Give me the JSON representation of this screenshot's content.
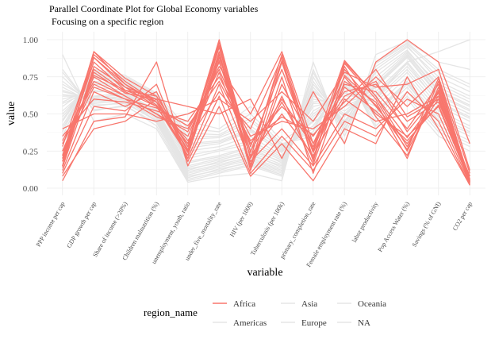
{
  "chart_data": {
    "type": "line",
    "title": "Parallel Coordinate Plot for Global Economy variables",
    "subtitle": "Focusing on a specific region",
    "xlabel": "variable",
    "ylabel": "value",
    "ylim": [
      0,
      1
    ],
    "y_ticks": [
      "0.00",
      "0.25",
      "0.50",
      "0.75",
      "1.00"
    ],
    "categories": [
      "PPP income per cap",
      "GDP growth per cap",
      "Share of income (>20%)",
      "Children malnutrition (%)",
      "unemployment, youth, ratio",
      "under_five_mortality_rate",
      "HIV (per 1000)",
      "Tuberculosis (per 100k)",
      "primary_completion_rate",
      "Female employment rate (%)",
      "labor productivity",
      "Pop Access Water (%)",
      "Savings (% of GNI)",
      "CO2 per cap"
    ],
    "grid": true,
    "legend": {
      "title": "region_name",
      "position": "bottom",
      "entries": [
        {
          "label": "Africa",
          "color": "#F8766D"
        },
        {
          "label": "Americas",
          "color": "#E5E5E5"
        },
        {
          "label": "Asia",
          "color": "#E5E5E5"
        },
        {
          "label": "Europe",
          "color": "#E5E5E5"
        },
        {
          "label": "Oceania",
          "color": "#E5E5E5"
        },
        {
          "label": "NA",
          "color": "#E5E5E5"
        }
      ]
    },
    "highlight_color": "#F8766D",
    "other_color": "#E5E5E5",
    "series": [
      {
        "group": "Africa",
        "values": [
          0.15,
          0.92,
          0.7,
          0.58,
          0.3,
          1.0,
          0.2,
          0.9,
          0.25,
          0.8,
          0.55,
          0.3,
          0.6,
          0.03
        ]
      },
      {
        "group": "Africa",
        "values": [
          0.2,
          0.88,
          0.68,
          0.6,
          0.25,
          0.95,
          0.15,
          0.85,
          0.2,
          0.84,
          0.6,
          0.25,
          0.65,
          0.05
        ]
      },
      {
        "group": "Africa",
        "values": [
          0.18,
          0.8,
          0.65,
          0.55,
          0.22,
          0.9,
          0.12,
          0.7,
          0.3,
          0.75,
          0.5,
          0.35,
          0.55,
          0.04
        ]
      },
      {
        "group": "Africa",
        "values": [
          0.25,
          0.75,
          0.62,
          0.5,
          0.35,
          0.85,
          0.25,
          0.6,
          0.28,
          0.7,
          0.65,
          0.4,
          0.7,
          0.06
        ]
      },
      {
        "group": "Africa",
        "values": [
          0.3,
          0.7,
          0.6,
          0.48,
          0.4,
          0.8,
          0.3,
          0.55,
          0.35,
          0.65,
          0.7,
          0.45,
          0.58,
          0.08
        ]
      },
      {
        "group": "Africa",
        "values": [
          0.22,
          0.85,
          0.66,
          0.62,
          0.28,
          0.78,
          0.22,
          0.5,
          0.22,
          0.6,
          0.45,
          0.5,
          0.62,
          0.05
        ]
      },
      {
        "group": "Africa",
        "values": [
          0.35,
          0.6,
          0.58,
          0.52,
          0.45,
          0.75,
          0.35,
          0.45,
          0.4,
          0.55,
          0.75,
          0.55,
          0.75,
          0.1
        ]
      },
      {
        "group": "Africa",
        "values": [
          0.12,
          0.65,
          0.55,
          0.65,
          0.2,
          0.7,
          0.18,
          0.4,
          0.15,
          0.5,
          0.4,
          0.6,
          0.5,
          0.03
        ]
      },
      {
        "group": "Africa",
        "values": [
          0.28,
          0.9,
          0.72,
          0.58,
          0.32,
          0.65,
          0.4,
          0.88,
          0.18,
          0.85,
          0.62,
          0.28,
          0.66,
          0.04
        ]
      },
      {
        "group": "Africa",
        "values": [
          0.1,
          0.55,
          0.52,
          0.7,
          0.18,
          0.62,
          0.1,
          0.35,
          0.12,
          0.45,
          0.35,
          0.65,
          0.45,
          0.02
        ]
      },
      {
        "group": "Africa",
        "values": [
          0.4,
          0.5,
          0.5,
          0.45,
          0.5,
          0.6,
          0.45,
          0.65,
          0.45,
          0.78,
          0.68,
          0.7,
          0.8,
          0.12
        ]
      },
      {
        "group": "Africa",
        "values": [
          0.15,
          0.82,
          0.68,
          0.55,
          0.24,
          0.92,
          0.14,
          0.75,
          0.1,
          0.72,
          0.58,
          0.2,
          0.72,
          0.03
        ]
      },
      {
        "group": "Africa",
        "values": [
          0.2,
          0.78,
          0.64,
          0.6,
          0.26,
          0.88,
          0.28,
          0.8,
          0.24,
          0.68,
          0.52,
          0.32,
          0.56,
          0.05
        ]
      },
      {
        "group": "Africa",
        "values": [
          0.05,
          0.45,
          0.48,
          0.85,
          0.15,
          0.55,
          0.08,
          0.3,
          0.05,
          0.4,
          0.3,
          0.75,
          0.4,
          0.02
        ]
      },
      {
        "group": "Africa",
        "values": [
          0.32,
          0.72,
          0.62,
          0.5,
          0.38,
          0.82,
          0.5,
          0.92,
          0.3,
          0.62,
          0.72,
          0.38,
          0.64,
          0.06
        ]
      },
      {
        "group": "Africa",
        "values": [
          0.18,
          0.88,
          0.7,
          0.56,
          0.3,
          0.96,
          0.2,
          0.58,
          0.2,
          0.82,
          0.48,
          0.22,
          0.68,
          0.04
        ]
      },
      {
        "group": "Africa",
        "values": [
          0.25,
          0.68,
          0.6,
          0.54,
          0.42,
          0.72,
          0.32,
          0.48,
          0.36,
          0.58,
          0.8,
          0.48,
          0.6,
          0.08
        ]
      },
      {
        "group": "Africa",
        "values": [
          0.14,
          0.76,
          0.66,
          0.58,
          0.22,
          0.86,
          0.16,
          0.62,
          0.16,
          0.76,
          0.56,
          0.26,
          0.74,
          0.04
        ]
      },
      {
        "group": "Africa",
        "values": [
          0.08,
          0.4,
          0.45,
          0.6,
          0.55,
          0.5,
          0.6,
          0.2,
          0.65,
          0.3,
          0.85,
          1.0,
          0.85,
          0.3
        ]
      },
      {
        "group": "Africa",
        "values": [
          0.22,
          0.92,
          0.74,
          0.62,
          0.28,
          0.98,
          0.24,
          0.86,
          0.26,
          0.86,
          0.62,
          0.34,
          0.62,
          0.05
        ]
      },
      {
        "group": "Other",
        "values": [
          0.55,
          0.7,
          0.68,
          0.55,
          0.2,
          0.25,
          0.3,
          0.2,
          0.55,
          0.6,
          0.6,
          0.8,
          0.55,
          0.45
        ]
      },
      {
        "group": "Other",
        "values": [
          0.6,
          0.65,
          0.65,
          0.52,
          0.15,
          0.2,
          0.25,
          0.18,
          0.6,
          0.55,
          0.65,
          0.85,
          0.6,
          0.5
        ]
      },
      {
        "group": "Other",
        "values": [
          0.65,
          0.6,
          0.62,
          0.5,
          0.12,
          0.18,
          0.22,
          0.15,
          0.65,
          0.5,
          0.7,
          0.9,
          0.65,
          0.55
        ]
      },
      {
        "group": "Other",
        "values": [
          0.5,
          0.72,
          0.7,
          0.58,
          0.25,
          0.28,
          0.35,
          0.22,
          0.5,
          0.65,
          0.55,
          0.75,
          0.5,
          0.4
        ]
      },
      {
        "group": "Other",
        "values": [
          0.7,
          0.58,
          0.6,
          0.48,
          0.1,
          0.15,
          0.2,
          0.12,
          0.7,
          0.45,
          0.75,
          0.92,
          0.7,
          0.6
        ]
      },
      {
        "group": "Other",
        "values": [
          0.45,
          0.75,
          0.72,
          0.6,
          0.3,
          0.32,
          0.4,
          0.25,
          0.45,
          0.7,
          0.5,
          0.7,
          0.45,
          0.35
        ]
      },
      {
        "group": "Other",
        "values": [
          0.75,
          0.55,
          0.58,
          0.45,
          0.08,
          0.12,
          0.18,
          0.1,
          0.75,
          0.4,
          0.8,
          0.95,
          0.75,
          0.65
        ]
      },
      {
        "group": "Other",
        "values": [
          0.4,
          0.78,
          0.74,
          0.62,
          0.35,
          0.35,
          0.45,
          0.28,
          0.4,
          0.75,
          0.45,
          0.65,
          0.4,
          0.3
        ]
      },
      {
        "group": "Other",
        "values": [
          0.8,
          0.52,
          0.56,
          0.42,
          0.05,
          0.1,
          0.15,
          0.08,
          0.8,
          0.35,
          0.85,
          0.98,
          0.8,
          0.7
        ]
      },
      {
        "group": "Other",
        "values": [
          0.35,
          0.8,
          0.76,
          0.64,
          0.4,
          0.38,
          0.5,
          0.3,
          0.35,
          0.8,
          0.4,
          0.6,
          0.35,
          0.25
        ]
      },
      {
        "group": "Other",
        "values": [
          0.58,
          0.68,
          0.66,
          0.56,
          0.18,
          0.22,
          0.28,
          0.19,
          0.58,
          0.62,
          0.62,
          0.82,
          0.58,
          0.48
        ]
      },
      {
        "group": "Other",
        "values": [
          0.62,
          0.62,
          0.64,
          0.51,
          0.14,
          0.19,
          0.24,
          0.16,
          0.62,
          0.52,
          0.68,
          0.88,
          0.62,
          0.52
        ]
      },
      {
        "group": "Other",
        "values": [
          0.48,
          0.74,
          0.71,
          0.59,
          0.27,
          0.3,
          0.38,
          0.24,
          0.48,
          0.68,
          0.52,
          0.72,
          0.48,
          0.38
        ]
      },
      {
        "group": "Other",
        "values": [
          0.68,
          0.57,
          0.59,
          0.47,
          0.09,
          0.14,
          0.19,
          0.11,
          0.68,
          0.44,
          0.78,
          0.93,
          0.68,
          0.58
        ]
      },
      {
        "group": "Other",
        "values": [
          0.52,
          0.71,
          0.69,
          0.57,
          0.22,
          0.26,
          0.32,
          0.21,
          0.52,
          0.64,
          0.58,
          0.78,
          0.52,
          0.42
        ]
      },
      {
        "group": "Other",
        "values": [
          0.66,
          0.59,
          0.61,
          0.49,
          0.11,
          0.16,
          0.21,
          0.13,
          0.66,
          0.48,
          0.72,
          0.91,
          0.66,
          0.56
        ]
      },
      {
        "group": "Other",
        "values": [
          0.42,
          0.77,
          0.73,
          0.61,
          0.33,
          0.34,
          0.42,
          0.27,
          0.42,
          0.72,
          0.48,
          0.68,
          0.42,
          0.32
        ]
      },
      {
        "group": "Other",
        "values": [
          0.72,
          0.56,
          0.57,
          0.46,
          0.07,
          0.13,
          0.17,
          0.09,
          0.72,
          0.42,
          0.82,
          0.96,
          0.72,
          0.62
        ]
      },
      {
        "group": "Other",
        "values": [
          0.38,
          0.79,
          0.75,
          0.63,
          0.37,
          0.36,
          0.47,
          0.29,
          0.38,
          0.78,
          0.42,
          0.62,
          0.38,
          0.28
        ]
      },
      {
        "group": "Other",
        "values": [
          0.78,
          0.53,
          0.55,
          0.44,
          0.06,
          0.11,
          0.16,
          0.09,
          0.78,
          0.38,
          0.84,
          0.97,
          0.78,
          0.68
        ]
      },
      {
        "group": "Other",
        "values": [
          0.9,
          0.45,
          0.5,
          0.4,
          0.04,
          0.08,
          0.1,
          0.05,
          0.85,
          0.3,
          0.9,
          0.99,
          0.85,
          0.8
        ]
      },
      {
        "group": "Other",
        "values": [
          0.3,
          0.62,
          0.6,
          0.45,
          0.45,
          0.4,
          0.55,
          0.32,
          0.45,
          0.55,
          0.6,
          0.85,
          0.92,
          1.0
        ]
      },
      {
        "group": "Other",
        "values": [
          0.57,
          0.66,
          0.63,
          0.53,
          0.17,
          0.21,
          0.27,
          0.17,
          0.57,
          0.58,
          0.63,
          0.84,
          0.57,
          0.47
        ]
      },
      {
        "group": "Other",
        "values": [
          0.63,
          0.61,
          0.63,
          0.5,
          0.13,
          0.17,
          0.23,
          0.14,
          0.63,
          0.49,
          0.69,
          0.89,
          0.63,
          0.53
        ]
      },
      {
        "group": "Other",
        "values": [
          0.46,
          0.76,
          0.72,
          0.6,
          0.29,
          0.31,
          0.39,
          0.26,
          0.46,
          0.69,
          0.51,
          0.71,
          0.46,
          0.37
        ]
      }
    ]
  }
}
